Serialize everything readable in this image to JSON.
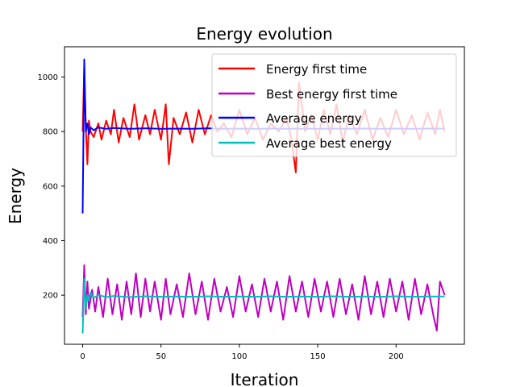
{
  "chart_data": {
    "type": "line",
    "title": "Energy evolution",
    "xlabel": "Iteration",
    "ylabel": "Energy",
    "xlim": [
      -11.6,
      243.6
    ],
    "ylim": [
      20,
      1111
    ],
    "xticks": [
      0,
      50,
      100,
      150,
      200
    ],
    "yticks": [
      200,
      400,
      600,
      800,
      1000
    ],
    "grid": false,
    "legend_position": "top-right",
    "series": [
      {
        "name": "Energy first time",
        "color": "#ff0000",
        "points": [
          [
            0,
            800
          ],
          [
            1,
            1040
          ],
          [
            2,
            820
          ],
          [
            3,
            680
          ],
          [
            4,
            840
          ],
          [
            5,
            800
          ],
          [
            7,
            780
          ],
          [
            10,
            830
          ],
          [
            12,
            770
          ],
          [
            15,
            840
          ],
          [
            18,
            790
          ],
          [
            20,
            880
          ],
          [
            23,
            760
          ],
          [
            26,
            850
          ],
          [
            30,
            780
          ],
          [
            33,
            900
          ],
          [
            36,
            770
          ],
          [
            40,
            860
          ],
          [
            43,
            790
          ],
          [
            46,
            880
          ],
          [
            50,
            770
          ],
          [
            53,
            900
          ],
          [
            55,
            680
          ],
          [
            58,
            850
          ],
          [
            62,
            790
          ],
          [
            66,
            870
          ],
          [
            70,
            760
          ],
          [
            74,
            880
          ],
          [
            78,
            790
          ],
          [
            82,
            860
          ],
          [
            86,
            800
          ],
          [
            90,
            830
          ],
          [
            95,
            780
          ],
          [
            100,
            880
          ],
          [
            105,
            790
          ],
          [
            110,
            850
          ],
          [
            115,
            770
          ],
          [
            120,
            830
          ],
          [
            125,
            800
          ],
          [
            130,
            850
          ],
          [
            133,
            780
          ],
          [
            136,
            650
          ],
          [
            138,
            980
          ],
          [
            142,
            800
          ],
          [
            146,
            860
          ],
          [
            150,
            770
          ],
          [
            154,
            880
          ],
          [
            158,
            790
          ],
          [
            162,
            900
          ],
          [
            166,
            760
          ],
          [
            170,
            860
          ],
          [
            175,
            790
          ],
          [
            180,
            880
          ],
          [
            185,
            770
          ],
          [
            190,
            850
          ],
          [
            195,
            780
          ],
          [
            200,
            880
          ],
          [
            205,
            790
          ],
          [
            210,
            860
          ],
          [
            215,
            770
          ],
          [
            220,
            870
          ],
          [
            225,
            790
          ],
          [
            228,
            880
          ],
          [
            231,
            800
          ]
        ]
      },
      {
        "name": "Best energy first time",
        "color": "#bf00bf",
        "points": [
          [
            0,
            120
          ],
          [
            1,
            310
          ],
          [
            2,
            130
          ],
          [
            3,
            250
          ],
          [
            4,
            150
          ],
          [
            6,
            220
          ],
          [
            8,
            140
          ],
          [
            10,
            230
          ],
          [
            13,
            120
          ],
          [
            16,
            260
          ],
          [
            19,
            130
          ],
          [
            22,
            240
          ],
          [
            25,
            110
          ],
          [
            28,
            250
          ],
          [
            31,
            130
          ],
          [
            34,
            280
          ],
          [
            37,
            120
          ],
          [
            40,
            260
          ],
          [
            43,
            140
          ],
          [
            46,
            250
          ],
          [
            50,
            110
          ],
          [
            53,
            260
          ],
          [
            56,
            130
          ],
          [
            60,
            240
          ],
          [
            64,
            120
          ],
          [
            68,
            280
          ],
          [
            72,
            130
          ],
          [
            76,
            250
          ],
          [
            80,
            110
          ],
          [
            84,
            260
          ],
          [
            88,
            140
          ],
          [
            92,
            230
          ],
          [
            96,
            120
          ],
          [
            100,
            270
          ],
          [
            104,
            140
          ],
          [
            108,
            240
          ],
          [
            112,
            120
          ],
          [
            116,
            260
          ],
          [
            120,
            140
          ],
          [
            124,
            250
          ],
          [
            128,
            110
          ],
          [
            132,
            270
          ],
          [
            136,
            140
          ],
          [
            140,
            250
          ],
          [
            144,
            120
          ],
          [
            148,
            260
          ],
          [
            152,
            140
          ],
          [
            156,
            250
          ],
          [
            160,
            120
          ],
          [
            164,
            260
          ],
          [
            168,
            130
          ],
          [
            172,
            240
          ],
          [
            176,
            110
          ],
          [
            180,
            270
          ],
          [
            184,
            130
          ],
          [
            188,
            250
          ],
          [
            192,
            120
          ],
          [
            196,
            260
          ],
          [
            200,
            140
          ],
          [
            204,
            250
          ],
          [
            208,
            110
          ],
          [
            212,
            260
          ],
          [
            216,
            130
          ],
          [
            220,
            240
          ],
          [
            224,
            120
          ],
          [
            226,
            70
          ],
          [
            228,
            250
          ],
          [
            231,
            200
          ]
        ]
      },
      {
        "name": "Average energy",
        "color": "#0000ff",
        "points": [
          [
            0,
            500
          ],
          [
            1,
            1065
          ],
          [
            2,
            800
          ],
          [
            3,
            830
          ],
          [
            4,
            790
          ],
          [
            5,
            815
          ],
          [
            7,
            805
          ],
          [
            10,
            815
          ],
          [
            15,
            810
          ],
          [
            20,
            813
          ],
          [
            30,
            810
          ],
          [
            40,
            812
          ],
          [
            50,
            810
          ],
          [
            60,
            811
          ],
          [
            70,
            810
          ],
          [
            80,
            812
          ],
          [
            90,
            810
          ],
          [
            100,
            811
          ],
          [
            110,
            810
          ],
          [
            120,
            811
          ],
          [
            130,
            810
          ],
          [
            140,
            811
          ],
          [
            150,
            810
          ],
          [
            160,
            811
          ],
          [
            170,
            810
          ],
          [
            180,
            811
          ],
          [
            190,
            810
          ],
          [
            200,
            811
          ],
          [
            210,
            810
          ],
          [
            220,
            811
          ],
          [
            231,
            811
          ]
        ]
      },
      {
        "name": "Average best energy",
        "color": "#00bfbf",
        "points": [
          [
            0,
            60
          ],
          [
            1,
            260
          ],
          [
            2,
            150
          ],
          [
            3,
            200
          ],
          [
            4,
            180
          ],
          [
            5,
            210
          ],
          [
            7,
            190
          ],
          [
            10,
            200
          ],
          [
            15,
            193
          ],
          [
            20,
            197
          ],
          [
            30,
            193
          ],
          [
            40,
            196
          ],
          [
            50,
            194
          ],
          [
            60,
            195
          ],
          [
            70,
            194
          ],
          [
            80,
            196
          ],
          [
            90,
            194
          ],
          [
            100,
            195
          ],
          [
            110,
            194
          ],
          [
            120,
            196
          ],
          [
            130,
            194
          ],
          [
            140,
            195
          ],
          [
            150,
            194
          ],
          [
            160,
            196
          ],
          [
            170,
            194
          ],
          [
            180,
            195
          ],
          [
            190,
            194
          ],
          [
            200,
            196
          ],
          [
            210,
            194
          ],
          [
            220,
            195
          ],
          [
            231,
            195
          ]
        ]
      }
    ]
  }
}
